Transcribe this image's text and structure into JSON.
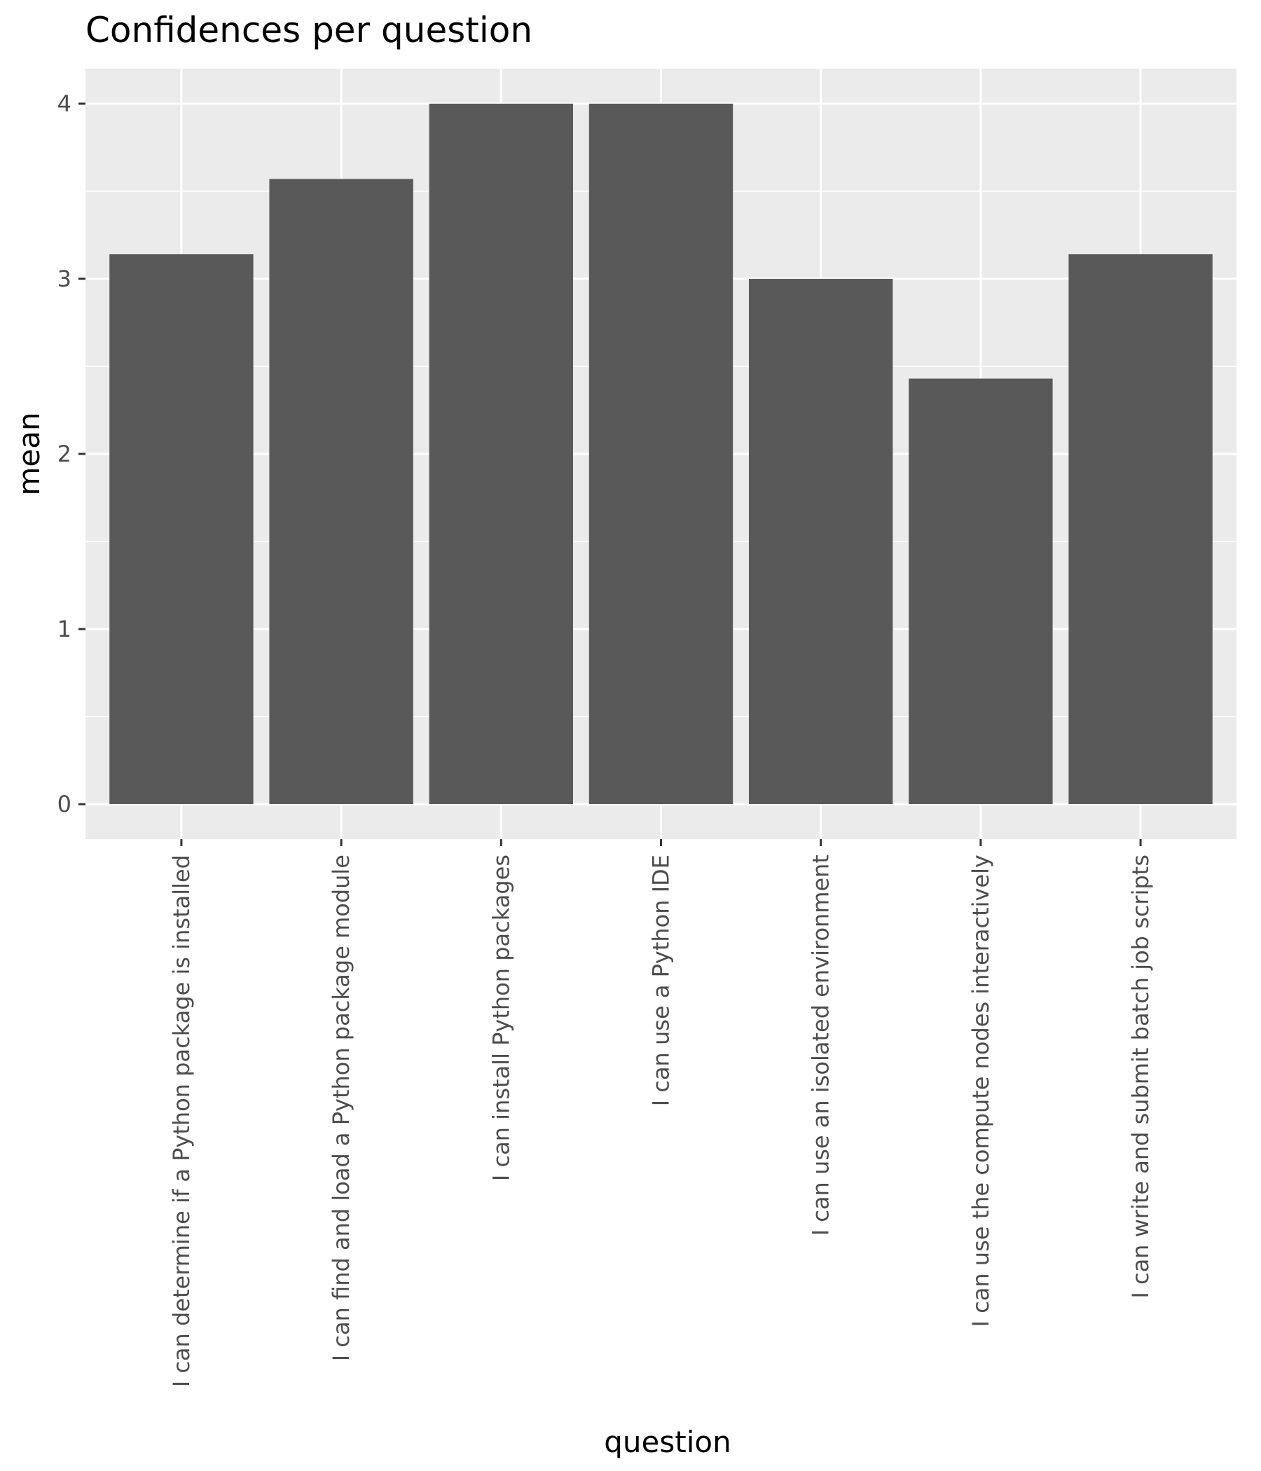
{
  "chart_data": {
    "type": "bar",
    "title": "Confidences per question",
    "xlabel": "question",
    "ylabel": "mean",
    "categories": [
      "I can determine if a Python package is installed",
      "I can find and load a Python package module",
      "I can install Python packages",
      "I can use a Python IDE",
      "I can use an isolated environment",
      "I can use the compute nodes interactively",
      "I can write and submit batch job scripts"
    ],
    "values": [
      3.14,
      3.57,
      4.0,
      4.0,
      3.0,
      2.43,
      3.14
    ],
    "ylim": [
      -0.2,
      4.2
    ],
    "yticks": [
      0,
      1,
      2,
      3,
      4
    ],
    "grid": true,
    "colors": {
      "bar": "#595959",
      "panel": "#ebebeb",
      "grid": "#ffffff",
      "tick_text": "#4d4d4d",
      "tick_mark": "#333333"
    }
  }
}
